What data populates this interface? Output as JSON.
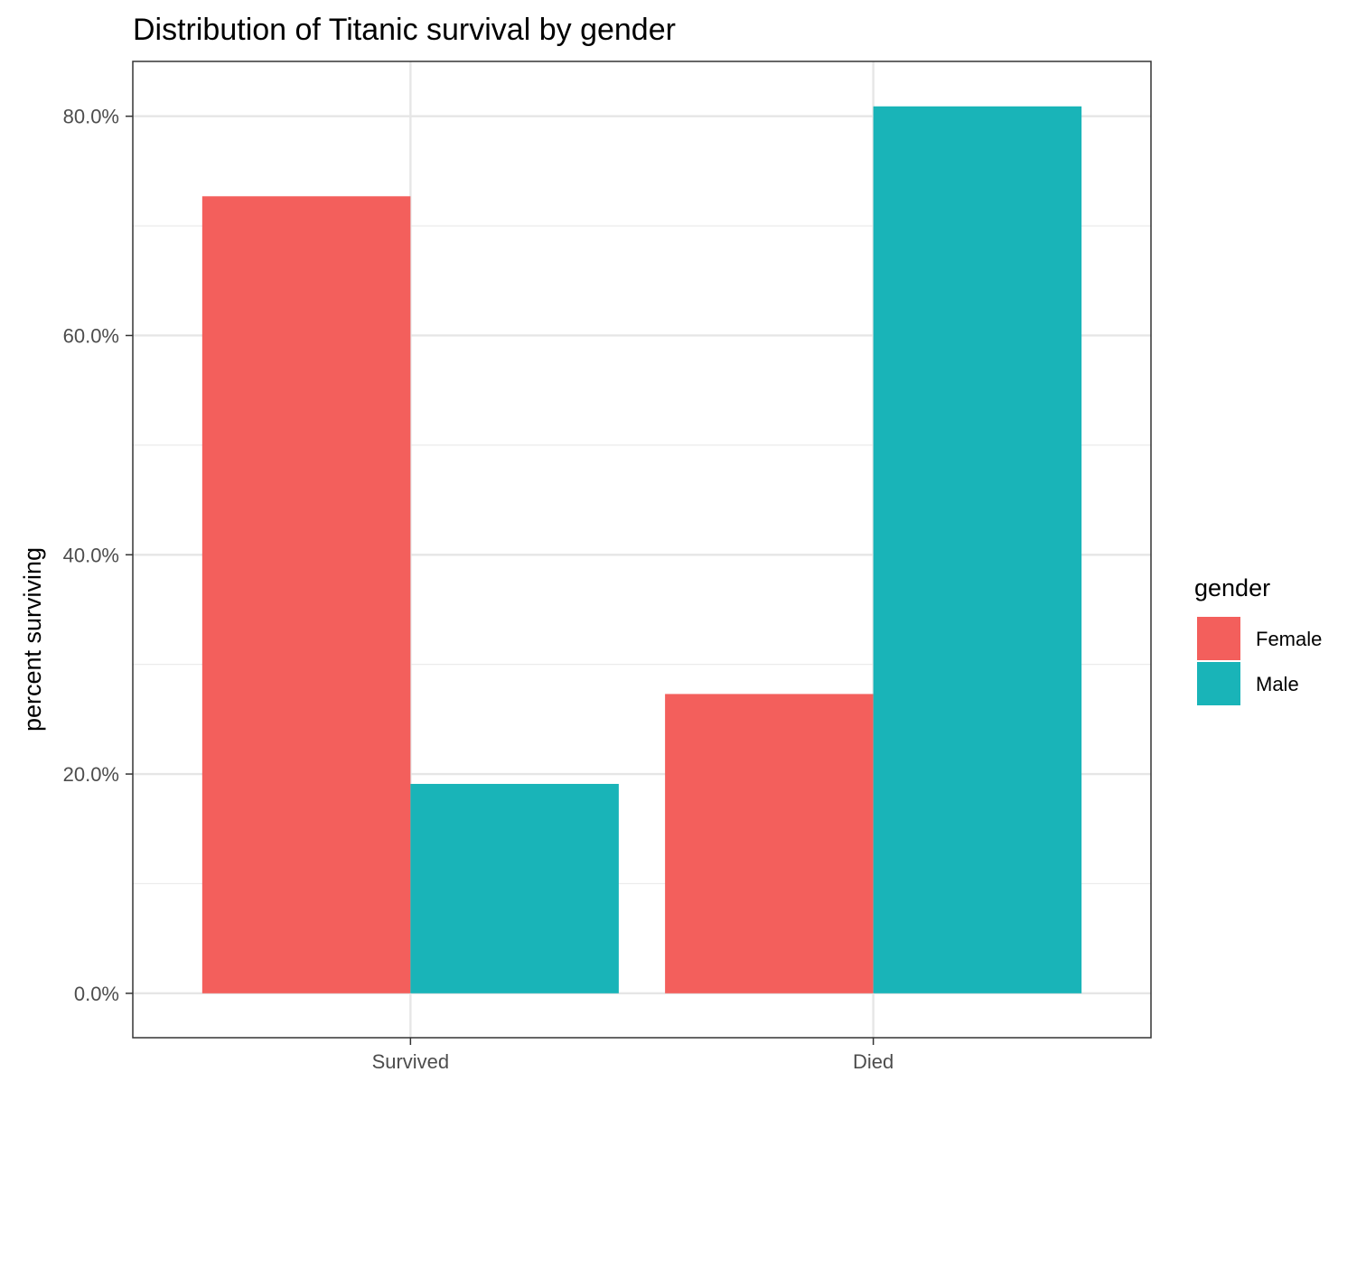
{
  "chart_data": {
    "type": "bar",
    "title": "Distribution of Titanic survival by gender",
    "xlabel": "",
    "ylabel": "percent surviving",
    "categories": [
      "Survived",
      "Died"
    ],
    "series": [
      {
        "name": "Female",
        "color": "#F35F5C",
        "values": [
          72.7,
          27.3
        ]
      },
      {
        "name": "Male",
        "color": "#19B4B8",
        "values": [
          19.1,
          80.9
        ]
      }
    ],
    "y_ticks": [
      0,
      20,
      40,
      60,
      80
    ],
    "y_tick_labels": [
      "0.0%",
      "20.0%",
      "40.0%",
      "60.0%",
      "80.0%"
    ],
    "ylim": [
      -4.05,
      85.0
    ],
    "grid": true,
    "legend": {
      "title": "gender",
      "placement": "right"
    }
  }
}
